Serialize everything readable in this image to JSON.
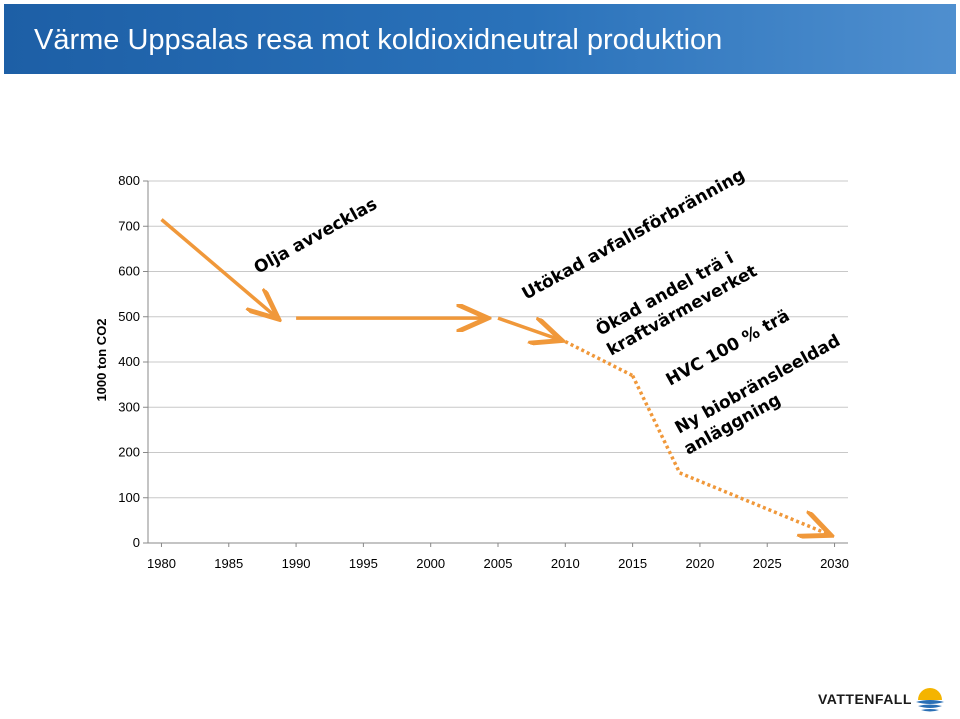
{
  "slide": {
    "title": "Värme Uppsalas resa mot koldioxidneutral produktion"
  },
  "logo": {
    "text": "VATTENFALL",
    "colors": {
      "blue": "#2a6fb5",
      "yellow": "#f4b400"
    }
  },
  "chart_data": {
    "type": "line",
    "title": "",
    "xlabel": "",
    "ylabel": "1000 ton CO2",
    "x_ticks": [
      1980,
      1985,
      1990,
      1995,
      2000,
      2005,
      2010,
      2015,
      2020,
      2025,
      2030
    ],
    "y_ticks": [
      0,
      100,
      200,
      300,
      400,
      500,
      600,
      700,
      800
    ],
    "xlim": [
      1979,
      2031
    ],
    "ylim": [
      0,
      800
    ],
    "grid": {
      "horizontal": true,
      "vertical": false
    },
    "color": "#f0983a",
    "series": [
      {
        "style": "solid-arrow",
        "x": [
          1980,
          1988.5
        ],
        "y": [
          715,
          500
        ]
      },
      {
        "style": "solid-arrow",
        "x": [
          1990,
          2004
        ],
        "y": [
          497,
          497
        ]
      },
      {
        "style": "solid-arrow",
        "x": [
          2005,
          2009.5
        ],
        "y": [
          497,
          450
        ]
      },
      {
        "style": "dotted",
        "x": [
          2010,
          2015
        ],
        "y": [
          445,
          370
        ]
      },
      {
        "style": "dotted",
        "x": [
          2015,
          2018.5
        ],
        "y": [
          370,
          155
        ]
      },
      {
        "style": "dotted-arrow",
        "x": [
          2018.5,
          2029.5
        ],
        "y": [
          155,
          20
        ]
      }
    ],
    "annotations": [
      {
        "text": "Olja avvecklas"
      },
      {
        "text": "Utökad avfallsförbränning"
      },
      {
        "text": "Ökad andel trä i"
      },
      {
        "text": "kraftvärmeverket"
      },
      {
        "text": "HVC 100 % trä"
      },
      {
        "text": "Ny biobränsleeldad"
      },
      {
        "text": "anläggning"
      }
    ]
  }
}
